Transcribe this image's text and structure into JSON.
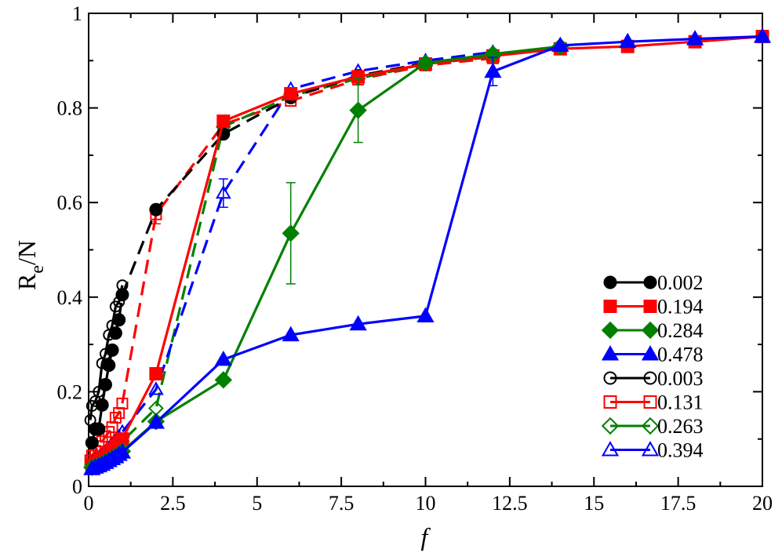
{
  "chart_data": {
    "type": "line",
    "xlabel": "f",
    "ylabel_main": "R",
    "ylabel_sub": "e",
    "ylabel_tail": "/N",
    "xlim": [
      0,
      20
    ],
    "ylim": [
      0,
      1
    ],
    "xticks": [
      {
        "value": 0,
        "label": "0"
      },
      {
        "value": 2.5,
        "label": "2.5"
      },
      {
        "value": 5,
        "label": "5"
      },
      {
        "value": 7.5,
        "label": "7.5"
      },
      {
        "value": 10,
        "label": "10"
      },
      {
        "value": 12.5,
        "label": "12.5"
      },
      {
        "value": 15,
        "label": "15"
      },
      {
        "value": 17.5,
        "label": "17.5"
      },
      {
        "value": 20,
        "label": "20"
      }
    ],
    "yticks": [
      {
        "value": 0,
        "label": "0"
      },
      {
        "value": 0.2,
        "label": "0.2"
      },
      {
        "value": 0.4,
        "label": "0.4"
      },
      {
        "value": 0.6,
        "label": "0.6"
      },
      {
        "value": 0.8,
        "label": "0.8"
      },
      {
        "value": 1,
        "label": "1"
      }
    ],
    "legend_position": "lower-right",
    "series": [
      {
        "name": "0.002",
        "color": "#000000",
        "marker": "circle",
        "filled": true,
        "dashed": true,
        "x": [
          0.1,
          0.2,
          0.3,
          0.4,
          0.5,
          0.6,
          0.7,
          0.8,
          0.9,
          1,
          2,
          4,
          6,
          8,
          10,
          12
        ],
        "y": [
          0.092,
          0.121,
          0.121,
          0.172,
          0.215,
          0.256,
          0.288,
          0.324,
          0.352,
          0.405,
          0.585,
          0.745,
          0.822,
          0.868,
          0.895,
          0.913
        ]
      },
      {
        "name": "0.194",
        "color": "#ff0000",
        "marker": "square",
        "filled": true,
        "dashed": false,
        "x": [
          0.1,
          0.2,
          0.3,
          0.4,
          0.5,
          0.6,
          0.7,
          0.8,
          0.9,
          1,
          2,
          4,
          6,
          8,
          10,
          12,
          14,
          16,
          18,
          20
        ],
        "y": [
          0.045,
          0.05,
          0.055,
          0.06,
          0.065,
          0.072,
          0.078,
          0.085,
          0.093,
          0.1,
          0.238,
          0.772,
          0.83,
          0.866,
          0.893,
          0.91,
          0.925,
          0.93,
          0.94,
          0.951
        ]
      },
      {
        "name": "0.284",
        "color": "#008000",
        "marker": "diamond",
        "filled": true,
        "dashed": false,
        "x": [
          0.1,
          0.2,
          0.3,
          0.4,
          0.5,
          0.6,
          0.7,
          0.8,
          0.9,
          1,
          2,
          4,
          6,
          8,
          10,
          12,
          14
        ],
        "y": [
          0.04,
          0.042,
          0.045,
          0.048,
          0.052,
          0.056,
          0.06,
          0.064,
          0.069,
          0.074,
          0.137,
          0.225,
          0.535,
          0.795,
          0.895,
          0.914,
          0.93
        ],
        "error_x": [
          6,
          8
        ],
        "error_y": [
          0.107,
          0.068
        ]
      },
      {
        "name": "0.478",
        "color": "#0000ff",
        "marker": "triangle",
        "filled": true,
        "dashed": false,
        "x": [
          0.1,
          0.2,
          0.3,
          0.4,
          0.5,
          0.6,
          0.7,
          0.8,
          0.9,
          1,
          2,
          4,
          6,
          8,
          10,
          12,
          14,
          16,
          18,
          20
        ],
        "y": [
          0.037,
          0.04,
          0.043,
          0.046,
          0.05,
          0.054,
          0.058,
          0.062,
          0.067,
          0.072,
          0.135,
          0.268,
          0.32,
          0.343,
          0.36,
          0.877,
          0.932,
          0.94,
          0.946,
          0.951
        ],
        "error_x": [
          12
        ],
        "error_y": [
          0.03
        ]
      },
      {
        "name": "0.003",
        "color": "#000000",
        "marker": "circle",
        "filled": false,
        "dashed": false,
        "x": [
          0.05,
          0.1,
          0.2,
          0.3,
          0.4,
          0.5,
          0.6,
          0.7,
          0.8,
          0.9,
          1
        ],
        "y": [
          0.14,
          0.17,
          0.18,
          0.2,
          0.26,
          0.28,
          0.32,
          0.34,
          0.38,
          0.39,
          0.425
        ]
      },
      {
        "name": "0.131",
        "color": "#ff0000",
        "marker": "square",
        "filled": false,
        "dashed": true,
        "x": [
          0.05,
          0.1,
          0.2,
          0.3,
          0.4,
          0.5,
          0.6,
          0.7,
          0.8,
          0.9,
          1,
          2,
          4,
          6,
          8,
          10,
          12
        ],
        "y": [
          0.055,
          0.065,
          0.075,
          0.085,
          0.095,
          0.105,
          0.115,
          0.125,
          0.145,
          0.155,
          0.175,
          0.575,
          0.765,
          0.815,
          0.86,
          0.89,
          0.905
        ],
        "error_x": [
          2
        ],
        "error_y": [
          0.02
        ]
      },
      {
        "name": "0.263",
        "color": "#008000",
        "marker": "diamond",
        "filled": false,
        "dashed": true,
        "x": [
          0.1,
          0.2,
          0.3,
          0.4,
          0.5,
          0.6,
          0.7,
          0.8,
          0.9,
          1,
          2,
          4,
          6,
          8,
          10,
          12
        ],
        "y": [
          0.045,
          0.05,
          0.055,
          0.06,
          0.065,
          0.07,
          0.075,
          0.08,
          0.088,
          0.095,
          0.165,
          0.76,
          0.825,
          0.862,
          0.893,
          0.908
        ]
      },
      {
        "name": "0.394",
        "color": "#0000ff",
        "marker": "triangle",
        "filled": false,
        "dashed": true,
        "x": [
          0.1,
          0.2,
          0.3,
          0.4,
          0.5,
          0.6,
          0.7,
          0.8,
          0.9,
          1,
          2,
          4,
          6,
          8,
          10,
          12
        ],
        "y": [
          0.05,
          0.055,
          0.06,
          0.067,
          0.073,
          0.08,
          0.088,
          0.096,
          0.105,
          0.115,
          0.205,
          0.62,
          0.84,
          0.878,
          0.9,
          0.918
        ],
        "error_x": [
          4
        ],
        "error_y": [
          0.03
        ]
      }
    ]
  }
}
